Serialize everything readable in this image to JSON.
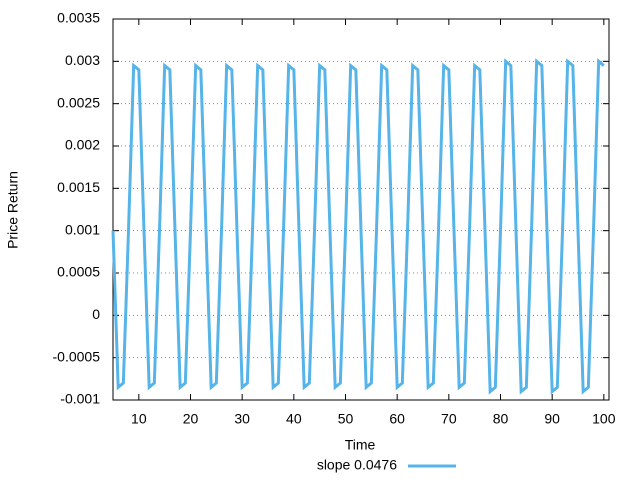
{
  "chart_data": {
    "type": "line",
    "xlabel": "Time",
    "ylabel": "Price Return",
    "x": [
      5,
      6,
      7,
      8,
      9,
      10,
      11,
      12,
      13,
      14,
      15,
      16,
      17,
      18,
      19,
      20,
      21,
      22,
      23,
      24,
      25,
      26,
      27,
      28,
      29,
      30,
      31,
      32,
      33,
      34,
      35,
      36,
      37,
      38,
      39,
      40,
      41,
      42,
      43,
      44,
      45,
      46,
      47,
      48,
      49,
      50,
      51,
      52,
      53,
      54,
      55,
      56,
      57,
      58,
      59,
      60,
      61,
      62,
      63,
      64,
      65,
      66,
      67,
      68,
      69,
      70,
      71,
      72,
      73,
      74,
      75,
      76,
      77,
      78,
      79,
      80,
      81,
      82,
      83,
      84,
      85,
      86,
      87,
      88,
      89,
      90,
      91,
      92,
      93,
      94,
      95,
      96,
      97,
      98,
      99,
      100
    ],
    "series": [
      {
        "name": "slope 0.0476",
        "color": "#56b4e9",
        "values": [
          0.001,
          -0.00085,
          -0.0008,
          0.001,
          0.00295,
          0.0029,
          0.001,
          -0.00085,
          -0.0008,
          0.001,
          0.00295,
          0.0029,
          0.001,
          -0.00085,
          -0.0008,
          0.001,
          0.00295,
          0.0029,
          0.001,
          -0.00085,
          -0.0008,
          0.001,
          0.00295,
          0.0029,
          0.001,
          -0.00085,
          -0.0008,
          0.001,
          0.00295,
          0.0029,
          0.001,
          -0.00085,
          -0.0008,
          0.001,
          0.00295,
          0.0029,
          0.001,
          -0.00085,
          -0.0008,
          0.001,
          0.00295,
          0.0029,
          0.001,
          -0.00085,
          -0.0008,
          0.001,
          0.00295,
          0.0029,
          0.001,
          -0.00085,
          -0.0008,
          0.001,
          0.00295,
          0.0029,
          0.001,
          -0.00085,
          -0.0008,
          0.001,
          0.00295,
          0.0029,
          0.001,
          -0.00085,
          -0.0008,
          0.001,
          0.00295,
          0.0029,
          0.001,
          -0.00085,
          -0.0008,
          0.001,
          0.00295,
          0.0029,
          0.001,
          -0.0009,
          -0.00085,
          0.001,
          0.003,
          0.00295,
          0.001,
          -0.0009,
          -0.00085,
          0.001,
          0.003,
          0.00295,
          0.001,
          -0.0009,
          -0.00085,
          0.001,
          0.003,
          0.00295,
          0.001,
          -0.0009,
          -0.00085,
          0.001,
          0.003,
          0.00295
        ]
      }
    ],
    "xlim": [
      5,
      101
    ],
    "xticks": [
      10,
      20,
      30,
      40,
      50,
      60,
      70,
      80,
      90,
      100
    ],
    "ylim": [
      -0.001,
      0.0035
    ],
    "yticks": [
      -0.001,
      -0.0005,
      0,
      0.0005,
      0.001,
      0.0015,
      0.002,
      0.0025,
      0.003,
      0.0035
    ],
    "grid": true
  }
}
